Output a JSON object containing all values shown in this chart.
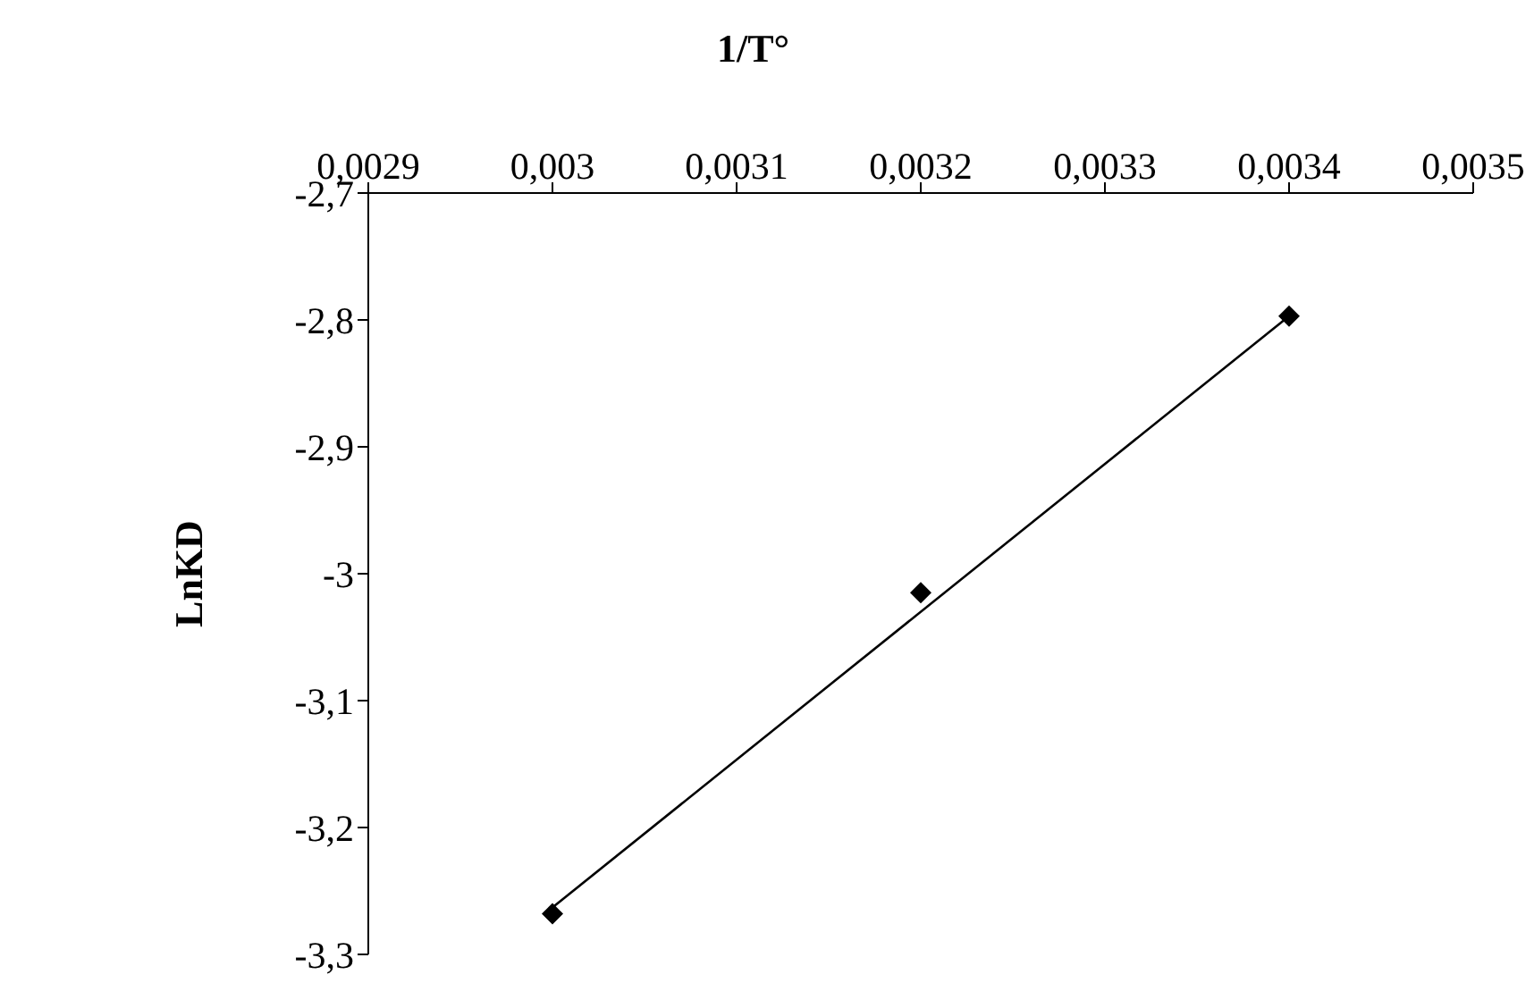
{
  "chart_data": {
    "type": "scatter",
    "xlabel": "1/T°",
    "ylabel": "LnKD",
    "xlim": [
      0.0029,
      0.0035
    ],
    "xticks": [
      {
        "value": 0.0029,
        "label": "0,0029"
      },
      {
        "value": 0.003,
        "label": "0,003"
      },
      {
        "value": 0.0031,
        "label": "0,0031"
      },
      {
        "value": 0.0032,
        "label": "0,0032"
      },
      {
        "value": 0.0033,
        "label": "0,0033"
      },
      {
        "value": 0.0034,
        "label": "0,0034"
      },
      {
        "value": 0.0035,
        "label": "0,0035"
      }
    ],
    "ylim": [
      -3.3,
      -2.7
    ],
    "yticks": [
      {
        "value": -2.7,
        "label": "-2,7"
      },
      {
        "value": -2.8,
        "label": "-2,8"
      },
      {
        "value": -2.9,
        "label": "-2,9"
      },
      -3,
      {
        "value": -3.1,
        "label": "-3,1"
      },
      {
        "value": -3.2,
        "label": "-3,2"
      },
      {
        "value": -3.3,
        "label": "-3,3"
      }
    ],
    "x": [
      0.003,
      0.0032,
      0.0034
    ],
    "series": [
      {
        "color": "#000000",
        "marker": "diamond",
        "values": [
          -3.268,
          -3.015,
          -2.797
        ]
      },
      {
        "type": "line",
        "color": "#000000",
        "marker": "none",
        "line_style": "solid",
        "x": [
          0.003,
          0.0034
        ],
        "values": [
          -3.263,
          -2.797
        ]
      }
    ],
    "legend": false
  }
}
